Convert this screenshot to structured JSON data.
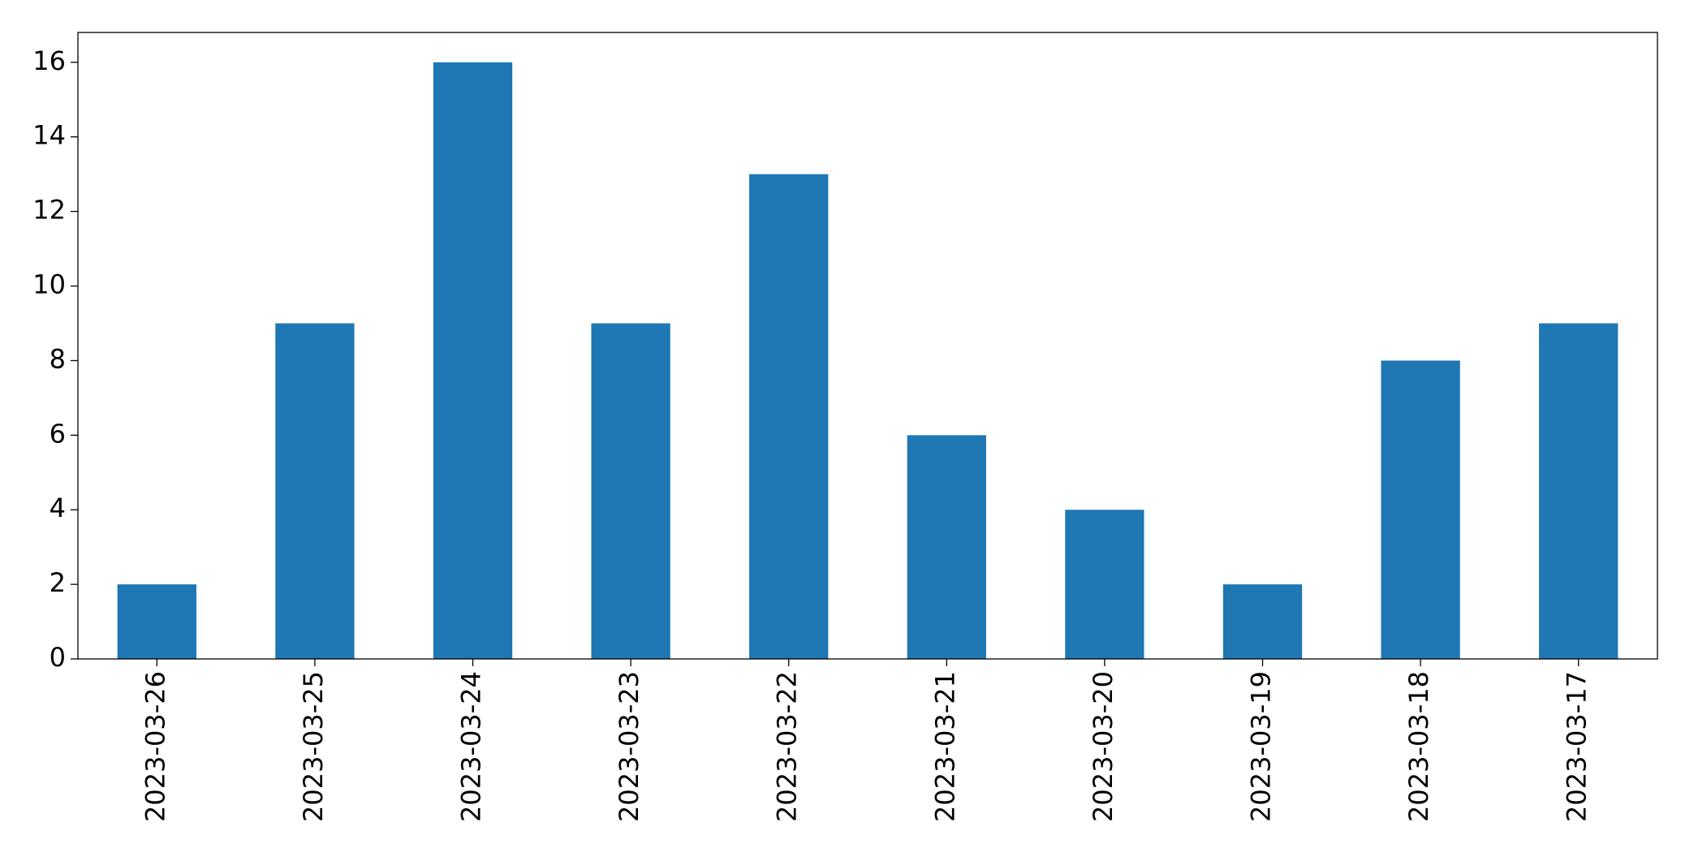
{
  "chart_data": {
    "type": "bar",
    "categories": [
      "2023-03-26",
      "2023-03-25",
      "2023-03-24",
      "2023-03-23",
      "2023-03-22",
      "2023-03-21",
      "2023-03-20",
      "2023-03-19",
      "2023-03-18",
      "2023-03-17"
    ],
    "values": [
      2,
      9,
      16,
      9,
      13,
      6,
      4,
      2,
      8,
      9
    ],
    "color": "#1f77b4",
    "ylim": [
      0,
      16.8
    ],
    "yticks": [
      0,
      2,
      4,
      6,
      8,
      10,
      12,
      14,
      16
    ],
    "grid": false
  }
}
